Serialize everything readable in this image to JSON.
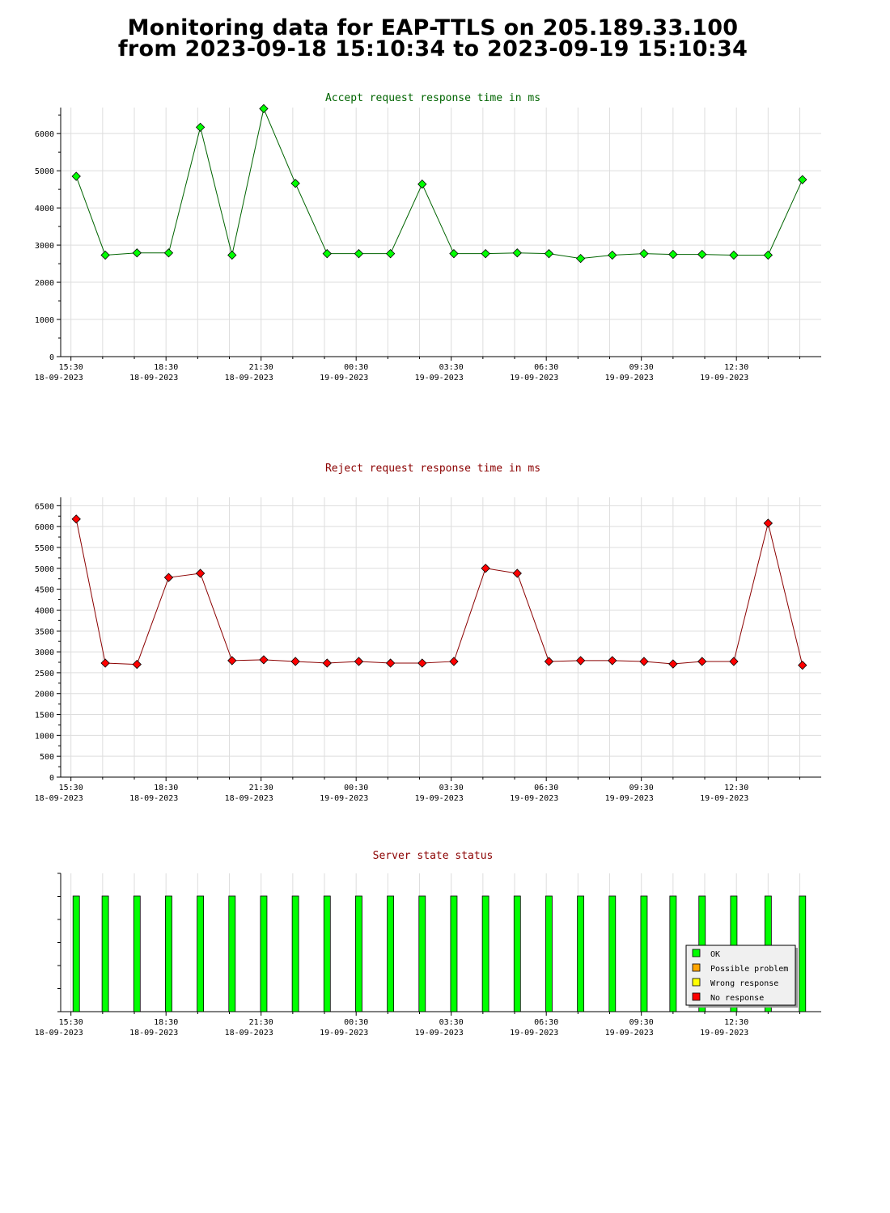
{
  "title": {
    "line1": "Monitoring data for EAP-TTLS on 205.189.33.100",
    "line2": "from 2023-09-18 15:10:34 to 2023-09-19 15:10:34"
  },
  "colors": {
    "accept_title": "#006400",
    "reject_title": "#8b0000",
    "accept_point": "#00ff00",
    "reject_point": "#ff0000",
    "ok": "#00ff00",
    "possible_problem": "#ffa500",
    "wrong_response": "#ffff00",
    "no_response": "#ff0000",
    "grid": "#dddddd"
  },
  "x_ticks": [
    {
      "time": "15:30",
      "date": "18-09-2023"
    },
    {
      "time": "18:30",
      "date": "18-09-2023"
    },
    {
      "time": "21:30",
      "date": "18-09-2023"
    },
    {
      "time": "00:30",
      "date": "19-09-2023"
    },
    {
      "time": "03:30",
      "date": "19-09-2023"
    },
    {
      "time": "06:30",
      "date": "19-09-2023"
    },
    {
      "time": "09:30",
      "date": "19-09-2023"
    },
    {
      "time": "12:30",
      "date": "19-09-2023"
    }
  ],
  "chart_data": [
    {
      "type": "line",
      "title": "Accept request response time in ms",
      "x": [
        "2023-09-18 15:40",
        "2023-09-18 16:35",
        "2023-09-18 17:35",
        "2023-09-18 18:35",
        "2023-09-18 19:35",
        "2023-09-18 20:35",
        "2023-09-18 21:35",
        "2023-09-18 22:35",
        "2023-09-18 23:35",
        "2023-09-19 00:35",
        "2023-09-19 01:35",
        "2023-09-19 02:35",
        "2023-09-19 03:35",
        "2023-09-19 04:35",
        "2023-09-19 05:35",
        "2023-09-19 06:35",
        "2023-09-19 07:35",
        "2023-09-19 08:35",
        "2023-09-19 09:35",
        "2023-09-19 10:30",
        "2023-09-19 11:25",
        "2023-09-19 12:25",
        "2023-09-19 13:30",
        "2023-09-19 14:35"
      ],
      "values": [
        4850,
        2730,
        2790,
        2790,
        6170,
        2730,
        6670,
        4660,
        2770,
        2770,
        2770,
        4640,
        2770,
        2770,
        2790,
        2770,
        2640,
        2730,
        2770,
        2750,
        2750,
        2730,
        2730,
        4760
      ],
      "ylim": [
        0,
        6700
      ],
      "yticks": [
        0,
        1000,
        2000,
        3000,
        4000,
        5000,
        6000
      ],
      "grid": true
    },
    {
      "type": "line",
      "title": "Reject request response time in ms",
      "x": [
        "2023-09-18 15:40",
        "2023-09-18 16:35",
        "2023-09-18 17:35",
        "2023-09-18 18:35",
        "2023-09-18 19:35",
        "2023-09-18 20:35",
        "2023-09-18 21:35",
        "2023-09-18 22:35",
        "2023-09-18 23:35",
        "2023-09-19 00:35",
        "2023-09-19 01:35",
        "2023-09-19 02:35",
        "2023-09-19 03:35",
        "2023-09-19 04:35",
        "2023-09-19 05:35",
        "2023-09-19 06:35",
        "2023-09-19 07:35",
        "2023-09-19 08:35",
        "2023-09-19 09:35",
        "2023-09-19 10:30",
        "2023-09-19 11:25",
        "2023-09-19 12:25",
        "2023-09-19 13:30",
        "2023-09-19 14:35"
      ],
      "values": [
        6180,
        2730,
        2700,
        4780,
        4880,
        2790,
        2810,
        2770,
        2730,
        2770,
        2730,
        2730,
        2770,
        5000,
        4880,
        2770,
        2790,
        2790,
        2770,
        2710,
        2770,
        2770,
        6080,
        2680
      ],
      "ylim": [
        0,
        6700
      ],
      "yticks": [
        0,
        500,
        1000,
        1500,
        2000,
        2500,
        3000,
        3500,
        4000,
        4500,
        5000,
        5500,
        6000,
        6500
      ],
      "grid": true
    },
    {
      "type": "bar",
      "title": "Server state status",
      "x": [
        "2023-09-18 15:40",
        "2023-09-18 16:35",
        "2023-09-18 17:35",
        "2023-09-18 18:35",
        "2023-09-18 19:35",
        "2023-09-18 20:35",
        "2023-09-18 21:35",
        "2023-09-18 22:35",
        "2023-09-18 23:35",
        "2023-09-19 00:35",
        "2023-09-19 01:35",
        "2023-09-19 02:35",
        "2023-09-19 03:35",
        "2023-09-19 04:35",
        "2023-09-19 05:35",
        "2023-09-19 06:35",
        "2023-09-19 07:35",
        "2023-09-19 08:35",
        "2023-09-19 09:35",
        "2023-09-19 10:30",
        "2023-09-19 11:25",
        "2023-09-19 12:25",
        "2023-09-19 13:30",
        "2023-09-19 14:35"
      ],
      "status": [
        "OK",
        "OK",
        "OK",
        "OK",
        "OK",
        "OK",
        "OK",
        "OK",
        "OK",
        "OK",
        "OK",
        "OK",
        "OK",
        "OK",
        "OK",
        "OK",
        "OK",
        "OK",
        "OK",
        "OK",
        "OK",
        "OK",
        "OK",
        "OK"
      ],
      "legend": [
        "OK",
        "Possible problem",
        "Wrong response",
        "No response"
      ],
      "legend_position": "bottom-right",
      "grid": false
    }
  ]
}
